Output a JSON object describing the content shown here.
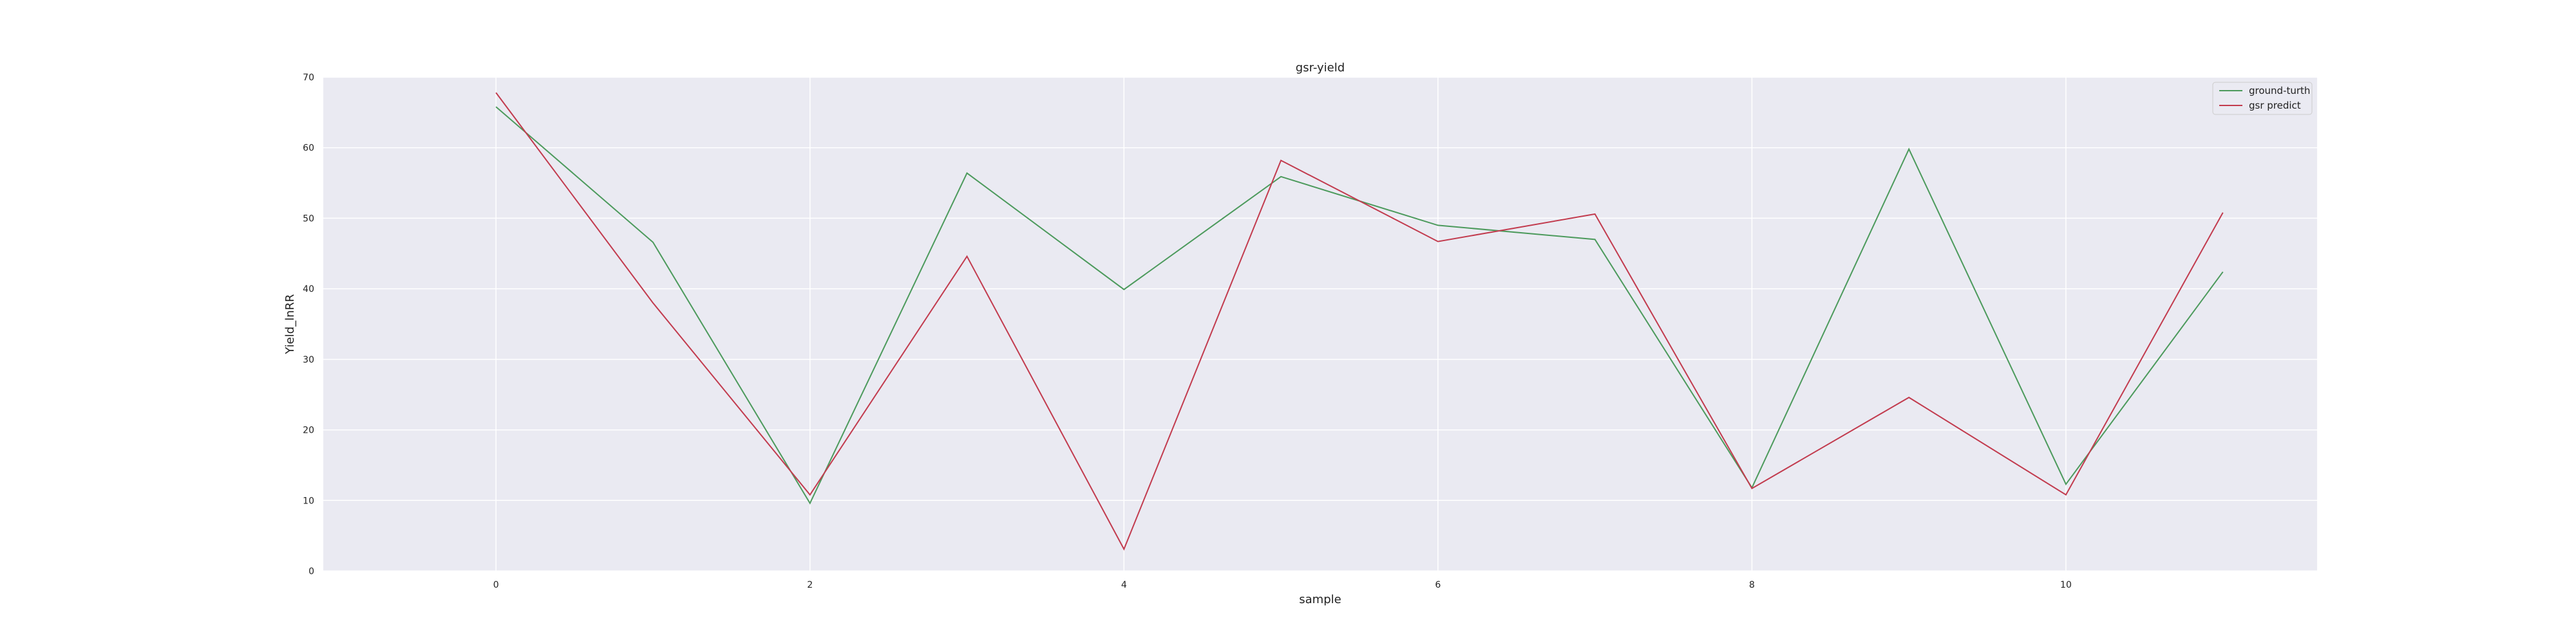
{
  "chart_data": {
    "type": "line",
    "title": "gsr-yield",
    "xlabel": "sample",
    "ylabel": "Yield_lnRR",
    "x": [
      0,
      1,
      2,
      3,
      4,
      5,
      6,
      7,
      8,
      9,
      10,
      11
    ],
    "xlim": [
      -1.1,
      11.6
    ],
    "ylim": [
      0,
      70
    ],
    "xticks": [
      "0",
      "2",
      "4",
      "6",
      "8",
      "10"
    ],
    "yticks": [
      "0",
      "10",
      "20",
      "30",
      "40",
      "50",
      "60",
      "70"
    ],
    "grid": true,
    "legend_position": "top-right",
    "background_color": "#eaeaf2",
    "series": [
      {
        "name": "ground-turth",
        "color": "#4c9a5c",
        "values": [
          65.8,
          46.6,
          9.6,
          56.4,
          39.9,
          55.9,
          49.0,
          47.0,
          11.8,
          59.8,
          12.3,
          42.4
        ]
      },
      {
        "name": "gsr predict",
        "color": "#c23b4e",
        "values": [
          67.8,
          38.0,
          10.8,
          44.6,
          3.1,
          58.2,
          46.7,
          50.6,
          11.7,
          24.6,
          10.8,
          50.8
        ]
      }
    ]
  }
}
